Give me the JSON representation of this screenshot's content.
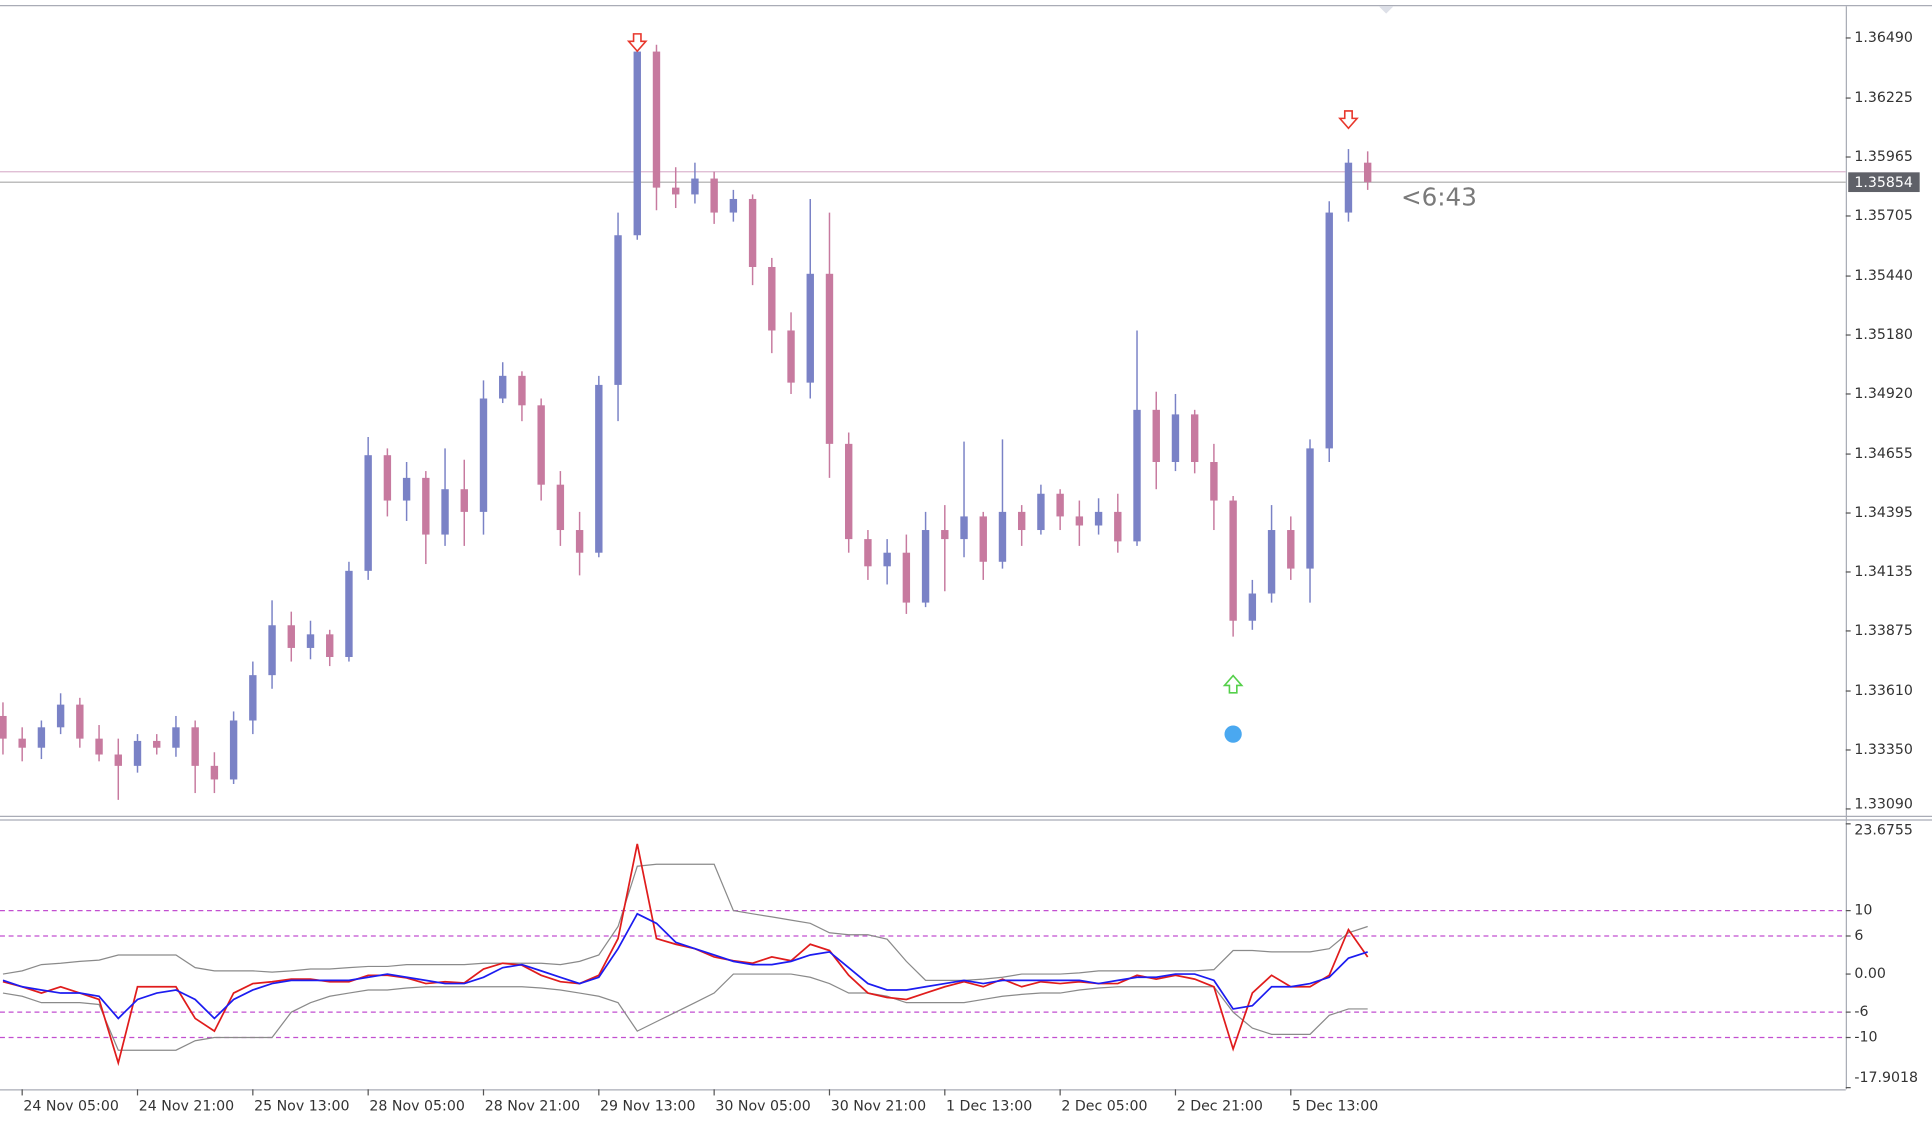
{
  "chart_data": [
    {
      "type": "candlestick",
      "categories": [
        null,
        "24 Nov 05:00",
        null,
        null,
        null,
        null,
        null,
        "24 Nov 21:00",
        null,
        null,
        null,
        null,
        null,
        "25 Nov 13:00",
        null,
        null,
        null,
        null,
        null,
        "28 Nov 05:00",
        null,
        null,
        null,
        null,
        null,
        "28 Nov 21:00",
        null,
        null,
        null,
        null,
        null,
        "29 Nov 13:00",
        null,
        null,
        null,
        null,
        null,
        "30 Nov 05:00",
        null,
        null,
        null,
        null,
        null,
        "30 Nov 21:00",
        null,
        null,
        null,
        null,
        null,
        "1 Dec 13:00",
        null,
        null,
        null,
        null,
        null,
        "2 Dec 05:00",
        null,
        null,
        null,
        null,
        null,
        "2 Dec 21:00",
        null,
        null,
        null,
        null,
        null,
        "5 Dec 13:00",
        null,
        null,
        null,
        null
      ],
      "open": [
        1.335,
        1.334,
        1.3336,
        1.3345,
        1.3355,
        1.334,
        1.3333,
        1.3328,
        1.3339,
        1.3336,
        1.3345,
        1.3328,
        1.3322,
        1.3348,
        1.3368,
        1.339,
        1.338,
        1.3386,
        1.3376,
        1.3414,
        1.3465,
        1.3445,
        1.3455,
        1.343,
        1.345,
        1.344,
        1.349,
        1.35,
        1.3487,
        1.3452,
        1.3432,
        1.3422,
        1.3496,
        1.3562,
        1.3643,
        1.3583,
        1.358,
        1.3587,
        1.3572,
        1.3578,
        1.3548,
        1.352,
        1.3497,
        1.3545,
        1.347,
        1.3428,
        1.3416,
        1.3422,
        1.34,
        1.3432,
        1.3428,
        1.3438,
        1.3418,
        1.344,
        1.3432,
        1.3448,
        1.3438,
        1.3434,
        1.344,
        1.3427,
        1.3485,
        1.3462,
        1.3483,
        1.3462,
        1.3445,
        1.3392,
        1.3404,
        1.3432,
        1.3415,
        1.3468,
        1.3572,
        1.3594
      ],
      "high": [
        1.3356,
        1.3345,
        1.3348,
        1.336,
        1.3358,
        1.3346,
        1.334,
        1.3342,
        1.3342,
        1.335,
        1.3348,
        1.3334,
        1.3352,
        1.3374,
        1.3401,
        1.3396,
        1.3392,
        1.3388,
        1.3418,
        1.3473,
        1.3468,
        1.3462,
        1.3458,
        1.3468,
        1.3463,
        1.3498,
        1.3506,
        1.3502,
        1.349,
        1.3458,
        1.344,
        1.35,
        1.3572,
        1.3648,
        1.3646,
        1.3592,
        1.3594,
        1.359,
        1.3582,
        1.358,
        1.3552,
        1.3528,
        1.3578,
        1.3572,
        1.3475,
        1.3432,
        1.3428,
        1.343,
        1.344,
        1.3443,
        1.3471,
        1.344,
        1.3472,
        1.3443,
        1.3452,
        1.345,
        1.3445,
        1.3446,
        1.3448,
        1.352,
        1.3493,
        1.3492,
        1.3485,
        1.347,
        1.3447,
        1.341,
        1.3443,
        1.3438,
        1.3472,
        1.3577,
        1.36,
        1.3599
      ],
      "low": [
        1.3333,
        1.333,
        1.3331,
        1.3342,
        1.3336,
        1.333,
        1.3313,
        1.3325,
        1.3333,
        1.3332,
        1.3316,
        1.3316,
        1.332,
        1.3342,
        1.3362,
        1.3374,
        1.3375,
        1.3372,
        1.3374,
        1.341,
        1.3438,
        1.3436,
        1.3417,
        1.3425,
        1.3425,
        1.343,
        1.3488,
        1.348,
        1.3445,
        1.3425,
        1.3412,
        1.342,
        1.348,
        1.356,
        1.3573,
        1.3574,
        1.3576,
        1.3567,
        1.3568,
        1.354,
        1.351,
        1.3492,
        1.349,
        1.3455,
        1.3422,
        1.341,
        1.3408,
        1.3395,
        1.3398,
        1.3405,
        1.342,
        1.341,
        1.3415,
        1.3425,
        1.343,
        1.3432,
        1.3425,
        1.343,
        1.3422,
        1.3425,
        1.345,
        1.3458,
        1.3457,
        1.3432,
        1.3385,
        1.3388,
        1.34,
        1.341,
        1.34,
        1.3462,
        1.3568,
        1.3582
      ],
      "close": [
        1.334,
        1.3336,
        1.3345,
        1.3355,
        1.334,
        1.3333,
        1.3328,
        1.3339,
        1.3336,
        1.3345,
        1.3328,
        1.3322,
        1.3348,
        1.3368,
        1.339,
        1.338,
        1.3386,
        1.3376,
        1.3414,
        1.3465,
        1.3445,
        1.3455,
        1.343,
        1.345,
        1.344,
        1.349,
        1.35,
        1.3487,
        1.3452,
        1.3432,
        1.3422,
        1.3496,
        1.3562,
        1.3643,
        1.3583,
        1.358,
        1.3587,
        1.3572,
        1.3578,
        1.3548,
        1.352,
        1.3497,
        1.3545,
        1.347,
        1.3428,
        1.3416,
        1.3422,
        1.34,
        1.3432,
        1.3428,
        1.3438,
        1.3418,
        1.344,
        1.3432,
        1.3448,
        1.3438,
        1.3434,
        1.344,
        1.3427,
        1.3485,
        1.3462,
        1.3483,
        1.3462,
        1.3445,
        1.3392,
        1.3404,
        1.3432,
        1.3415,
        1.3468,
        1.3572,
        1.3594,
        1.35854
      ],
      "up_color": "#7a82c6",
      "down_color": "#c77a9f",
      "ylim": [
        1.3306,
        1.3663
      ],
      "yticks": [
        {
          "value": 1.3649,
          "label": "1.36490"
        },
        1.36225,
        1.35965,
        1.35705,
        {
          "value": 1.3544,
          "label": "1.35440"
        },
        {
          "value": 1.3518,
          "label": "1.35180"
        },
        {
          "value": 1.3492,
          "label": "1.34920"
        },
        1.34655,
        1.34395,
        1.34135,
        1.33875,
        {
          "value": 1.3361,
          "label": "1.33610"
        },
        {
          "value": 1.3335,
          "label": "1.33350"
        },
        {
          "value": 1.3309,
          "label": "1.33090"
        }
      ],
      "bid": 1.35854,
      "bid_color": "#a8a8a8",
      "bid_label_color": "#5f6168",
      "ask": 1.359,
      "ask_color": "#dcb6cf",
      "timer": "<6:43",
      "signals": [
        {
          "index": 33,
          "value": 1.3647,
          "direction": "down",
          "color": "#e8372c"
        },
        {
          "index": 70,
          "value": 1.3613,
          "direction": "down",
          "color": "#e8372c"
        },
        {
          "index": 64,
          "value": 1.3364,
          "direction": "up",
          "color": "#55d04a"
        },
        {
          "index": 64,
          "value": 1.3342,
          "direction": "dot",
          "color": "#4aa8f0"
        }
      ]
    },
    {
      "type": "line",
      "series": [
        {
          "color": "#8a8a8a",
          "values": [
            0,
            0.5,
            1.5,
            1.7,
            2,
            2.2,
            3,
            3,
            3,
            3,
            1,
            0.5,
            0.5,
            0.5,
            0.3,
            0.5,
            0.8,
            0.8,
            1,
            1.2,
            1.2,
            1.5,
            1.5,
            1.5,
            1.5,
            1.7,
            1.7,
            1.7,
            1.7,
            1.5,
            2,
            3,
            7.5,
            17,
            17.3,
            17.3,
            17.3,
            17.3,
            10,
            9.5,
            9,
            8.5,
            8,
            6.5,
            6.2,
            6.2,
            5.5,
            2,
            -1,
            -1,
            -1,
            -0.8,
            -0.5,
            0,
            0,
            0,
            0.2,
            0.5,
            0.5,
            0.5,
            0.5,
            0.5,
            0.5,
            0.7,
            3.7,
            3.7,
            3.5,
            3.5,
            3.5,
            4,
            6.5,
            7.5
          ]
        },
        {
          "color": "#8a8a8a",
          "values": [
            -3,
            -3.5,
            -4.5,
            -4.5,
            -4.5,
            -4.8,
            -12,
            -12,
            -12,
            -12,
            -10.5,
            -10,
            -10,
            -10,
            -10,
            -6,
            -4.5,
            -3.5,
            -3,
            -2.5,
            -2.5,
            -2.2,
            -2,
            -2,
            -2,
            -2,
            -2,
            -2,
            -2.2,
            -2.5,
            -3,
            -3.5,
            -4.5,
            -9,
            -7.5,
            -6,
            -4.5,
            -3,
            0,
            0,
            0,
            0,
            -0.5,
            -1.5,
            -3,
            -3,
            -3.5,
            -4.5,
            -4.5,
            -4.5,
            -4.5,
            -4,
            -3.5,
            -3.2,
            -3,
            -3,
            -2.5,
            -2.2,
            -2,
            -2,
            -2,
            -2,
            -2,
            -2,
            -6,
            -8.5,
            -9.5,
            -9.5,
            -9.5,
            -6.5,
            -5.5,
            -5.5
          ]
        },
        {
          "color": "#e01c1c",
          "values": [
            -1.2,
            -2,
            -3,
            -2,
            -3,
            -4,
            -14,
            -2,
            -2,
            -2,
            -7,
            -9,
            -3,
            -1.5,
            -1.2,
            -0.8,
            -0.8,
            -1.2,
            -1.2,
            -0.2,
            -0.2,
            -0.6,
            -1.5,
            -1.2,
            -1.4,
            0.8,
            1.7,
            1.4,
            -0.2,
            -1.2,
            -1.5,
            -0.2,
            5.6,
            20.5,
            5.6,
            4.7,
            4,
            2.7,
            2.1,
            1.7,
            2.7,
            2.1,
            4.7,
            3.7,
            -0.2,
            -3,
            -3.7,
            -4,
            -3,
            -2,
            -1.2,
            -2,
            -0.8,
            -2,
            -1.2,
            -1.5,
            -1.2,
            -1.5,
            -1.5,
            -0.2,
            -0.8,
            -0.2,
            -0.8,
            -2,
            -11.8,
            -3,
            -0.2,
            -2,
            -2,
            -0.2,
            7,
            2.7
          ]
        },
        {
          "color": "#1c1cf0",
          "values": [
            -1,
            -2,
            -2.5,
            -3,
            -3,
            -3.5,
            -7,
            -4,
            -3,
            -2.5,
            -4,
            -7,
            -4,
            -2.5,
            -1.5,
            -1,
            -1,
            -1,
            -1,
            -0.5,
            0,
            -0.5,
            -1,
            -1.5,
            -1.5,
            -0.5,
            1,
            1.5,
            0.5,
            -0.5,
            -1.5,
            -0.5,
            4,
            9.5,
            8,
            5,
            4,
            3,
            2,
            1.5,
            1.5,
            2,
            3,
            3.5,
            1,
            -1.5,
            -2.5,
            -2.5,
            -2,
            -1.5,
            -1,
            -1.5,
            -1,
            -1,
            -1,
            -1,
            -1,
            -1.5,
            -1,
            -0.5,
            -0.5,
            0,
            0,
            -1,
            -5.5,
            -5,
            -2,
            -2,
            -1.5,
            -0.5,
            2.5,
            3.5
          ]
        }
      ],
      "ylim": [
        -18.16,
        24.37
      ],
      "yticks": [
        23.6755,
        10,
        6,
        {
          "value": 0,
          "label": "0.00"
        },
        -6,
        -10,
        -17.9018
      ],
      "levels": [
        10,
        6,
        -6,
        -10
      ],
      "level_color": "#c24fd0"
    }
  ]
}
